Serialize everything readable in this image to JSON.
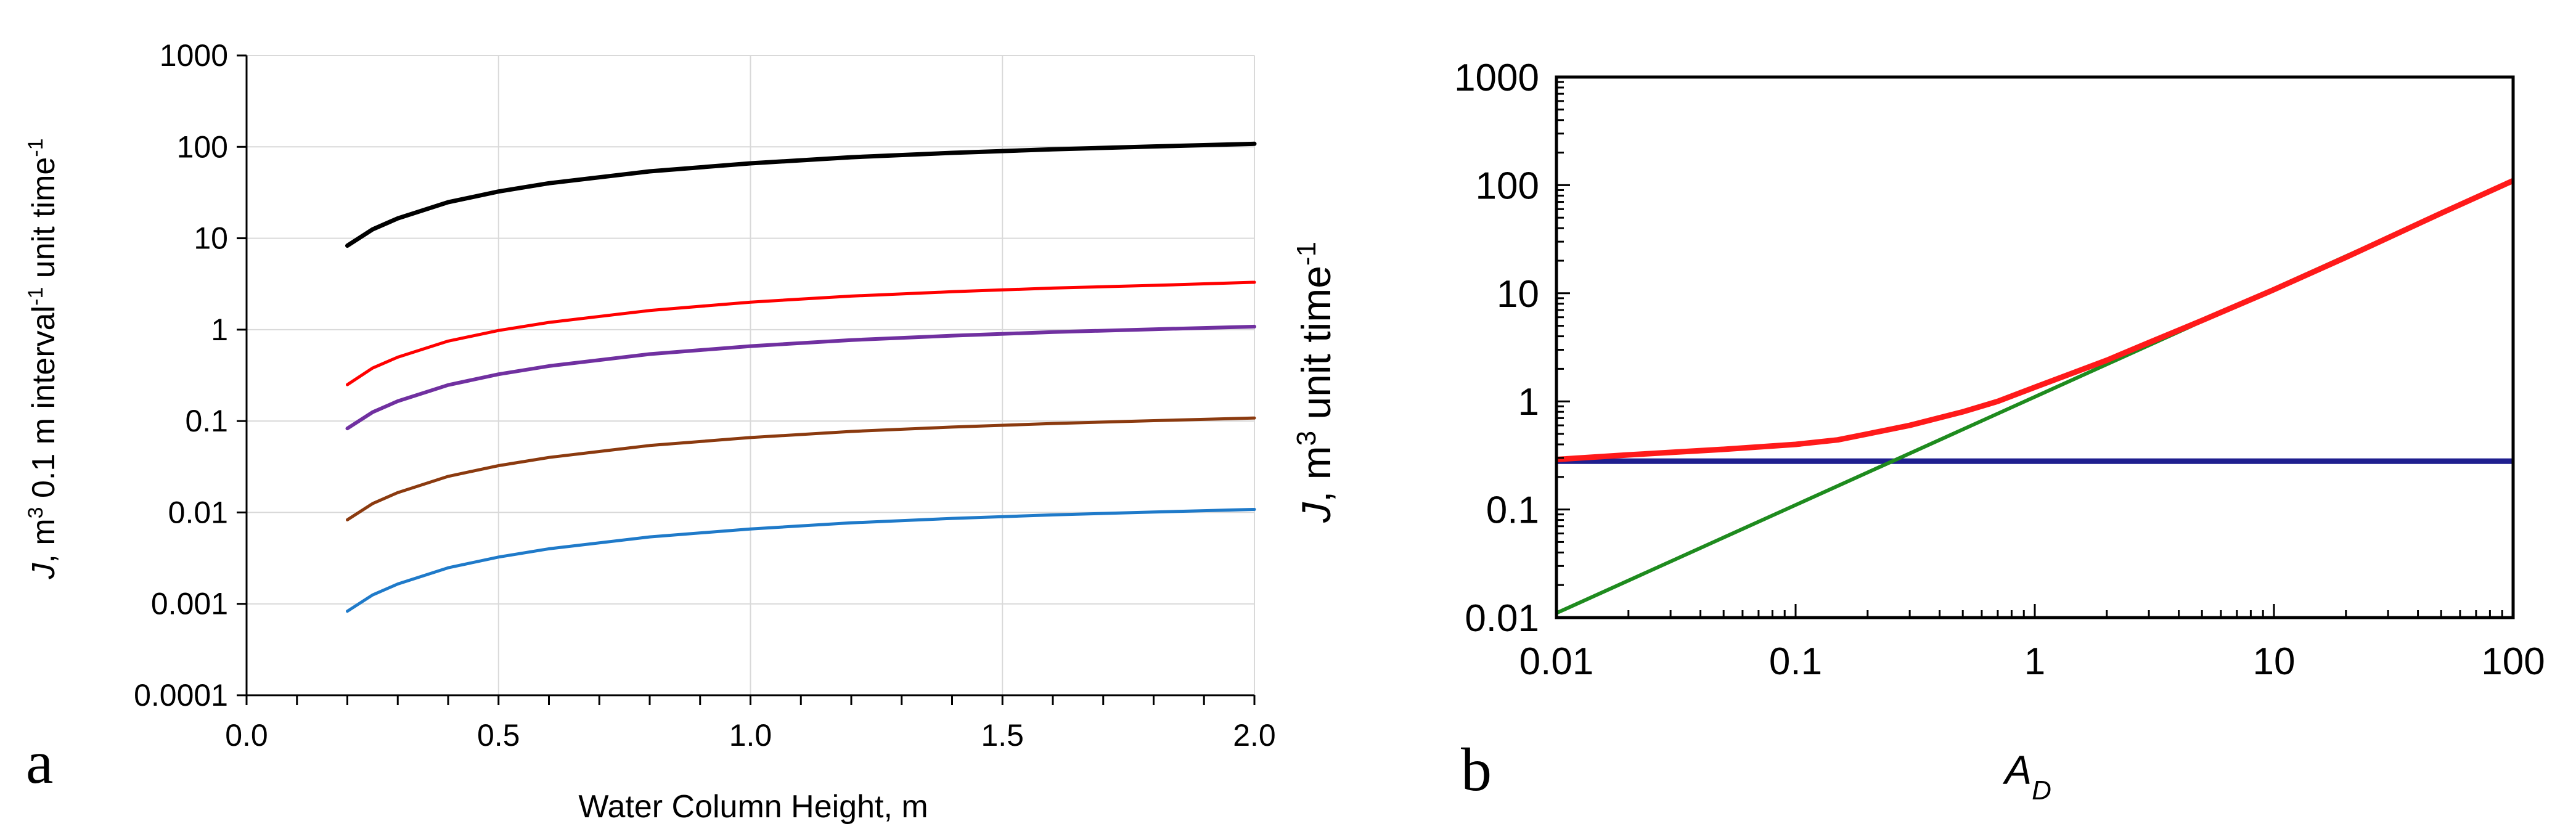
{
  "chart_data": [
    {
      "panel_label": "a",
      "type": "line",
      "xlabel": "Water Column Height, m",
      "ylabel_parts": [
        "J",
        ", m",
        "3",
        " 0.1 m interval",
        "-1",
        " unit time",
        "-1"
      ],
      "xlim": [
        0,
        2.0
      ],
      "ylim": [
        0.0001,
        1000
      ],
      "yscale": "log",
      "grid": true,
      "x_ticks": [
        0,
        0.5,
        1.0,
        1.5,
        2.0
      ],
      "x_tick_labels": [
        "0.0",
        "0.5",
        "1.0",
        "1.5",
        "2.0"
      ],
      "x_minor_step": 0.1,
      "y_ticks": [
        0.0001,
        0.001,
        0.01,
        0.1,
        1,
        10,
        100,
        1000
      ],
      "y_tick_labels": [
        "0.0001",
        "0.001",
        "0.01",
        "0.1",
        "1",
        "10",
        "100",
        "1000"
      ],
      "x": [
        0.2,
        0.25,
        0.3,
        0.4,
        0.5,
        0.6,
        0.8,
        1.0,
        1.2,
        1.4,
        1.6,
        1.8,
        2.0
      ],
      "series": [
        {
          "color": "#000000",
          "line_width": 7,
          "values": [
            8.3,
            12.5,
            16.5,
            24.8,
            32.5,
            40,
            54,
            66,
            77,
            86,
            94,
            101,
            108
          ]
        },
        {
          "color": "#ff0000",
          "line_width": 5,
          "values": [
            0.25,
            0.38,
            0.5,
            0.75,
            0.98,
            1.2,
            1.62,
            2.0,
            2.33,
            2.6,
            2.85,
            3.05,
            3.3
          ]
        },
        {
          "color": "#7030a0",
          "line_width": 6,
          "values": [
            0.083,
            0.125,
            0.165,
            0.248,
            0.325,
            0.4,
            0.54,
            0.66,
            0.77,
            0.86,
            0.94,
            1.01,
            1.08
          ]
        },
        {
          "color": "#8b3a0f",
          "line_width": 5,
          "values": [
            0.0083,
            0.0125,
            0.0165,
            0.0248,
            0.0325,
            0.04,
            0.054,
            0.066,
            0.077,
            0.086,
            0.094,
            0.101,
            0.108
          ]
        },
        {
          "color": "#1f7ac9",
          "line_width": 5,
          "values": [
            0.00083,
            0.00125,
            0.00165,
            0.00248,
            0.00325,
            0.004,
            0.0054,
            0.0066,
            0.0077,
            0.0086,
            0.0094,
            0.0101,
            0.0108
          ]
        }
      ]
    },
    {
      "panel_label": "b",
      "type": "line",
      "xlabel_parts": [
        "A",
        "D"
      ],
      "ylabel_parts": [
        "J",
        ", m",
        "3",
        " unit time",
        "-1"
      ],
      "xlim": [
        0.01,
        100
      ],
      "ylim": [
        0.01,
        1000
      ],
      "xscale": "log",
      "yscale": "log",
      "grid": false,
      "x_ticks": [
        0.01,
        0.1,
        1,
        10,
        100
      ],
      "x_tick_labels": [
        "0.01",
        "0.1",
        "1",
        "10",
        "100"
      ],
      "y_ticks": [
        0.01,
        0.1,
        1,
        10,
        100,
        1000
      ],
      "y_tick_labels": [
        "0.01",
        "0.1",
        "1",
        "10",
        "100",
        "1000"
      ],
      "series": [
        {
          "color": "#1f1f8f",
          "line_width": 9,
          "x": [
            0.01,
            100
          ],
          "values": [
            0.28,
            0.28
          ]
        },
        {
          "color": "#1e8b1e",
          "line_width": 6,
          "x": [
            0.01,
            100
          ],
          "values": [
            0.011,
            110
          ]
        },
        {
          "color": "#ff1a1a",
          "line_width": 9,
          "x": [
            0.01,
            0.02,
            0.05,
            0.1,
            0.15,
            0.2,
            0.3,
            0.5,
            0.7,
            1,
            2,
            3,
            5,
            10,
            20,
            50,
            100
          ],
          "values": [
            0.29,
            0.32,
            0.36,
            0.4,
            0.44,
            0.5,
            0.6,
            0.8,
            1.0,
            1.35,
            2.4,
            3.5,
            5.6,
            10.8,
            21.5,
            55,
            110
          ]
        }
      ]
    }
  ]
}
